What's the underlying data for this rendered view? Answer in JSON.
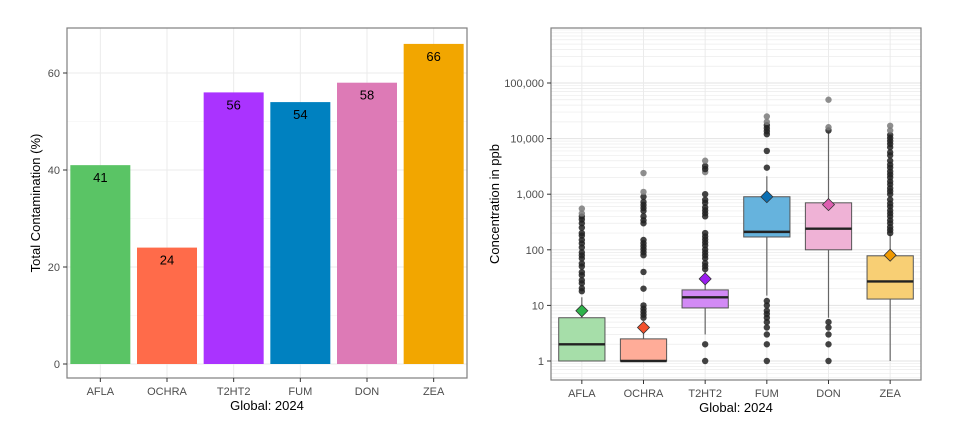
{
  "chart_data": [
    {
      "type": "bar",
      "title": "",
      "xlabel": "Global: 2024",
      "ylabel": "Total Contamination (%)",
      "categories": [
        "AFLA",
        "OCHRA",
        "T2HT2",
        "FUM",
        "DON",
        "ZEA"
      ],
      "values": [
        41,
        24,
        56,
        54,
        58,
        66
      ],
      "data_labels": [
        "41",
        "24",
        "56",
        "54",
        "58",
        "66"
      ],
      "colors": [
        "#5ac465",
        "#ff6b4a",
        "#aa33ff",
        "#0081c0",
        "#dd7ab6",
        "#f2a600"
      ],
      "ylim": [
        -2,
        69
      ],
      "yticks": [
        0,
        20,
        40,
        60
      ],
      "ytick_labels": [
        "0",
        "20",
        "40",
        "60"
      ],
      "grid": true,
      "legend": "none"
    },
    {
      "type": "box",
      "title": "",
      "xlabel": "Global: 2024",
      "ylabel": "Concentration in ppb",
      "yscale": "log10",
      "ylim": [
        0.6,
        600000
      ],
      "yticks": [
        1,
        10,
        100,
        1000,
        10000,
        100000
      ],
      "ytick_labels": [
        "1",
        "10",
        "100",
        "1,000",
        "10,000",
        "100,000"
      ],
      "categories": [
        "AFLA",
        "OCHRA",
        "T2HT2",
        "FUM",
        "DON",
        "ZEA"
      ],
      "grid": true,
      "legend": "none",
      "series": [
        {
          "name": "AFLA",
          "fill": "#a6dea9",
          "mean_color": "#2db34a",
          "q1": 1,
          "median": 2,
          "q3": 6,
          "whisker_low": 1,
          "whisker_high": 14,
          "mean": 8,
          "outliers": [
            18,
            25,
            35,
            50,
            70,
            90,
            110,
            130,
            150,
            180,
            200,
            250,
            300,
            350,
            450,
            550
          ]
        },
        {
          "name": "OCHRA",
          "fill": "#ffac98",
          "mean_color": "#f4512c",
          "q1": 1,
          "median": 1,
          "q3": 2.5,
          "whisker_low": 1,
          "whisker_high": 5,
          "mean": 4,
          "outliers": [
            6,
            10,
            20,
            40,
            80,
            150,
            300,
            400,
            500,
            900,
            1100,
            2400
          ]
        },
        {
          "name": "T2HT2",
          "fill": "#d28af5",
          "mean_color": "#9b1ff0",
          "q1": 9,
          "median": 14,
          "q3": 19,
          "whisker_low": 3,
          "whisker_high": 40,
          "mean": 30,
          "outliers": [
            1,
            2,
            45,
            70,
            120,
            200,
            400,
            700,
            1000,
            2500,
            4000
          ]
        },
        {
          "name": "FUM",
          "fill": "#66b3dd",
          "mean_color": "#0a6fb3",
          "q1": 170,
          "median": 210,
          "q3": 900,
          "whisker_low": 15,
          "whisker_high": 2100,
          "mean": 900,
          "outliers": [
            1,
            2,
            3,
            4,
            5,
            6,
            7,
            8,
            10,
            12,
            3000,
            6000,
            12000,
            20000,
            25000
          ]
        },
        {
          "name": "DON",
          "fill": "#efb2d6",
          "mean_color": "#dd5fb0",
          "q1": 100,
          "median": 240,
          "q3": 700,
          "whisker_low": 6,
          "whisker_high": 13000,
          "mean": 650,
          "outliers": [
            1,
            2,
            3,
            4,
            5,
            14000,
            16000,
            50000
          ]
        },
        {
          "name": "ZEA",
          "fill": "#f8cf74",
          "mean_color": "#f09900",
          "q1": 13,
          "median": 27,
          "q3": 78,
          "whisker_low": 1,
          "whisker_high": 190,
          "mean": 80,
          "outliers": [
            200,
            300,
            400,
            600,
            800,
            1000,
            1500,
            2000,
            3000,
            4000,
            5000,
            7000,
            8000,
            14000,
            17000
          ]
        }
      ]
    }
  ]
}
